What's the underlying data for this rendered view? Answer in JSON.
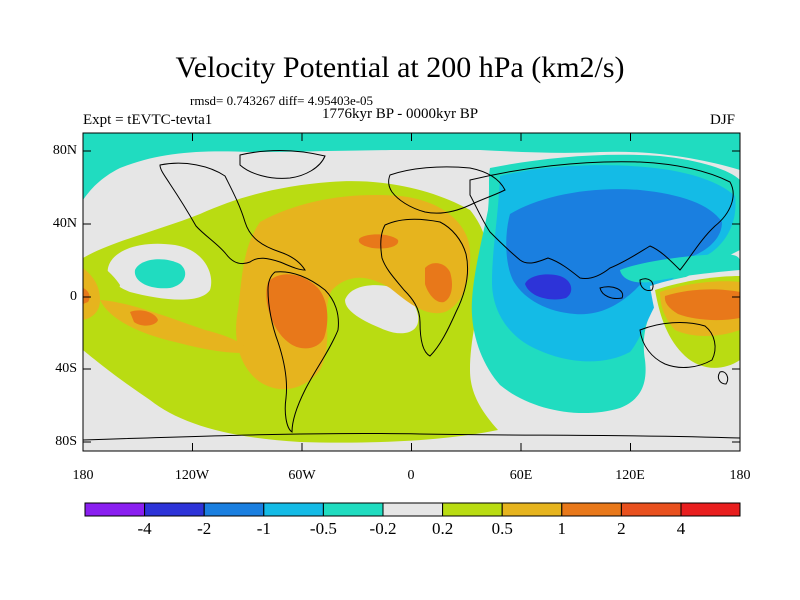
{
  "title": "Velocity Potential at 200 hPa (km2/s)",
  "stats_line": "rmsd= 0.743267 diff= 4.95403e-05",
  "experiment": "Expt = tEVTC-tevta1",
  "period": "1776kyr BP - 0000kyr BP",
  "season": "DJF",
  "lat_ticks": [
    "80N",
    "40N",
    "0",
    "40S",
    "80S"
  ],
  "lon_ticks": [
    "180",
    "120W",
    "60W",
    "0",
    "60E",
    "120E",
    "180"
  ],
  "colorbar": {
    "labels": [
      "-4",
      "-2",
      "-1",
      "-0.5",
      "-0.2",
      "0.2",
      "0.5",
      "1",
      "2",
      "4"
    ],
    "colors": [
      "#8a1ff0",
      "#2d33d8",
      "#1a7fe0",
      "#14bbe6",
      "#20dcc0",
      "#e6e6e6",
      "#b9dc12",
      "#e6b41e",
      "#e8781a",
      "#e8501e",
      "#e81e1e"
    ]
  },
  "legend_units": "km2/s"
}
